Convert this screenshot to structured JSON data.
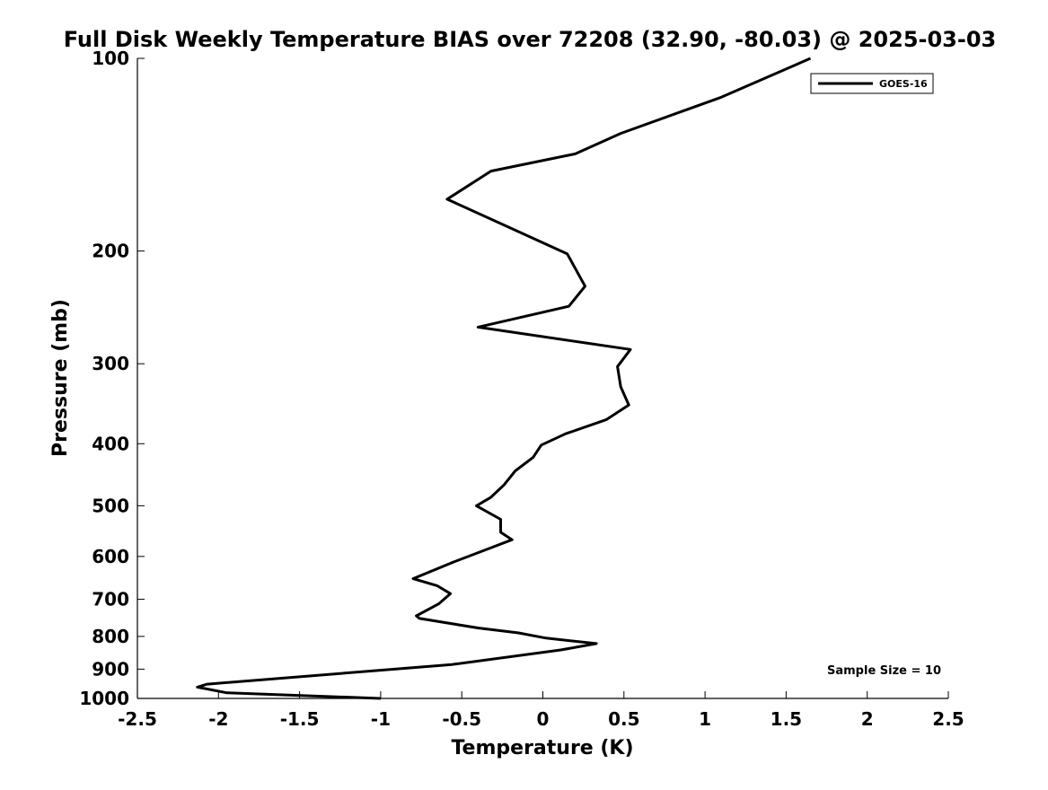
{
  "chart_data": {
    "type": "line",
    "title": "Full Disk Weekly Temperature BIAS over 72208 (32.90, -80.03) @ 2025-03-03",
    "xlabel": "Temperature (K)",
    "ylabel": "Pressure (mb)",
    "xlim": [
      -2.5,
      2.5
    ],
    "ylim": [
      1000,
      100
    ],
    "yscale": "log",
    "xticks": [
      "-2.5",
      "-2",
      "-1.5",
      "-1",
      "-0.5",
      "0",
      "0.5",
      "1",
      "1.5",
      "2",
      "2.5"
    ],
    "yticks": [
      "100",
      "200",
      "300",
      "400",
      "500",
      "600",
      "700",
      "800",
      "900",
      "1000"
    ],
    "grid": false,
    "legend_position": "top-right",
    "series": [
      {
        "name": "GOES-16",
        "color": "#000000",
        "x": [
          1.65,
          1.1,
          0.48,
          0.2,
          -0.32,
          -0.59,
          0.15,
          0.26,
          0.16,
          -0.4,
          0.54,
          0.46,
          0.48,
          0.53,
          0.39,
          0.14,
          -0.01,
          -0.06,
          -0.17,
          -0.24,
          -0.32,
          -0.41,
          -0.26,
          -0.26,
          -0.19,
          -0.33,
          -0.55,
          -0.8,
          -0.65,
          -0.57,
          -0.64,
          -0.78,
          -0.76,
          -0.4,
          -0.15,
          0.02,
          0.33,
          0.11,
          -0.56,
          -2.07,
          -2.13,
          -1.95,
          -1.0
        ],
        "y": [
          100,
          115,
          131,
          141,
          150,
          166,
          202,
          227,
          244,
          263,
          285,
          303,
          326,
          348,
          367,
          386,
          402,
          420,
          441,
          464,
          485,
          500,
          525,
          550,
          565,
          583,
          612,
          650,
          667,
          686,
          711,
          743,
          750,
          776,
          790,
          805,
          821,
          840,
          885,
          950,
          960,
          980,
          1000
        ]
      }
    ],
    "annotation": "Sample Size = 10"
  }
}
